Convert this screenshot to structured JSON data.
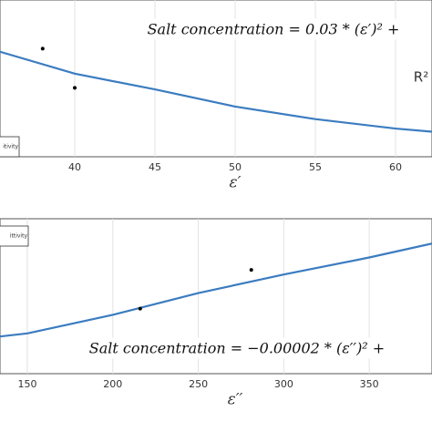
{
  "chart_data": [
    {
      "type": "line",
      "xlabel": "ε′",
      "annotation": "Salt concentration = 0.03 * (ε′)² +",
      "note": "R²",
      "xlim": [
        35.34,
        62.27
      ],
      "xticks": [
        40,
        45,
        50,
        55,
        60
      ],
      "ylim": [
        0,
        10
      ],
      "grid": true,
      "series": [
        {
          "name": "itivity",
          "color": "#3b7cc0",
          "x": [
            35.34,
            40,
            45,
            50,
            55,
            60,
            62.27
          ],
          "values": [
            6.7,
            5.3,
            4.3,
            3.2,
            2.4,
            1.8,
            1.6
          ]
        }
      ],
      "points": {
        "x": [
          38,
          40
        ],
        "values": [
          6.9,
          4.4
        ]
      }
    },
    {
      "type": "line",
      "xlabel": "ε′′",
      "annotation": "Salt concentration = −0.00002 * (ε′′)² +",
      "xlim": [
        134,
        386.7
      ],
      "xticks": [
        150,
        200,
        250,
        300,
        350
      ],
      "ylim": [
        0,
        10
      ],
      "grid": true,
      "series": [
        {
          "name": "ittivity",
          "color": "#3b7cc0",
          "x": [
            134,
            150,
            200,
            250,
            300,
            350,
            386.7
          ],
          "values": [
            2.4,
            2.6,
            3.8,
            5.2,
            6.4,
            7.5,
            8.4
          ]
        }
      ],
      "points": {
        "x": [
          216,
          281
        ],
        "values": [
          4.2,
          6.7
        ]
      }
    }
  ]
}
